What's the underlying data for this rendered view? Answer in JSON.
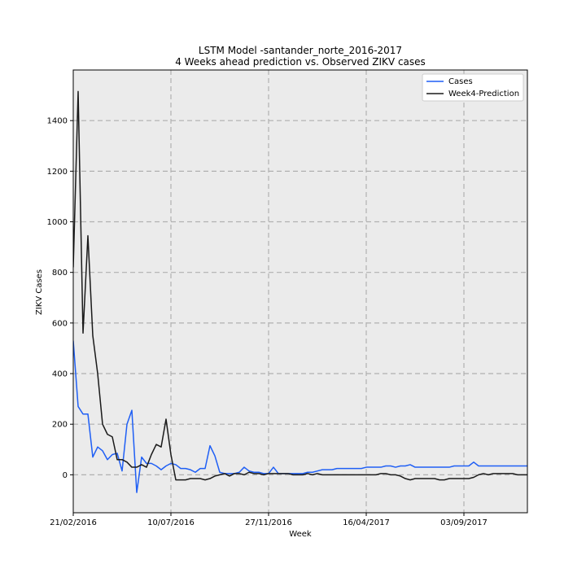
{
  "chart_data": {
    "type": "line",
    "title_lines": [
      "LSTM Model -santander_norte_2016-2017",
      "4 Weeks ahead prediction vs. Observed ZIKV cases"
    ],
    "xlabel": "Week",
    "ylabel": "ZIKV Cases",
    "ylim": [
      -150,
      1600
    ],
    "yticks": [
      0,
      200,
      400,
      600,
      800,
      1000,
      1200,
      1400
    ],
    "x_start": "21/02/2016",
    "x_end_week": 93,
    "xticks": [
      {
        "week": 0,
        "label": "21/02/2016"
      },
      {
        "week": 20,
        "label": "10/07/2016"
      },
      {
        "week": 40,
        "label": "27/11/2016"
      },
      {
        "week": 60,
        "label": "16/04/2017"
      },
      {
        "week": 80,
        "label": "03/09/2017"
      }
    ],
    "grid": true,
    "legend_position": "top-right",
    "series": [
      {
        "name": "Cases",
        "color": "#1f5ff5",
        "values": [
          530,
          270,
          240,
          240,
          70,
          110,
          95,
          60,
          80,
          85,
          15,
          200,
          255,
          -70,
          70,
          45,
          45,
          35,
          20,
          35,
          45,
          40,
          25,
          25,
          20,
          10,
          25,
          25,
          115,
          75,
          10,
          5,
          5,
          5,
          10,
          30,
          15,
          10,
          10,
          5,
          5,
          30,
          5,
          5,
          5,
          5,
          5,
          5,
          10,
          10,
          15,
          20,
          20,
          20,
          25,
          25,
          25,
          25,
          25,
          25,
          30,
          30,
          30,
          30,
          35,
          35,
          30,
          35,
          35,
          40,
          30,
          30,
          30,
          30,
          30,
          30,
          30,
          30,
          35,
          35,
          35,
          35,
          50,
          35,
          35,
          35,
          35,
          35,
          35,
          35,
          35,
          35,
          35,
          35,
          35
        ]
      },
      {
        "name": "Week4-Prediction",
        "color": "#1a1a1a",
        "values": [
          820,
          1515,
          560,
          945,
          550,
          400,
          200,
          160,
          150,
          60,
          60,
          50,
          30,
          30,
          40,
          30,
          80,
          120,
          110,
          220,
          80,
          -20,
          -20,
          -20,
          -15,
          -15,
          -15,
          -20,
          -15,
          -5,
          0,
          5,
          -5,
          5,
          5,
          0,
          10,
          5,
          5,
          0,
          5,
          5,
          5,
          5,
          5,
          0,
          0,
          0,
          5,
          0,
          5,
          0,
          0,
          0,
          0,
          0,
          0,
          0,
          0,
          0,
          0,
          0,
          0,
          5,
          5,
          0,
          0,
          -5,
          -15,
          -20,
          -15,
          -15,
          -15,
          -15,
          -15,
          -20,
          -20,
          -15,
          -15,
          -15,
          -15,
          -15,
          -10,
          0,
          5,
          0,
          5,
          5,
          5,
          5,
          5,
          0,
          0,
          0,
          0
        ]
      }
    ]
  }
}
